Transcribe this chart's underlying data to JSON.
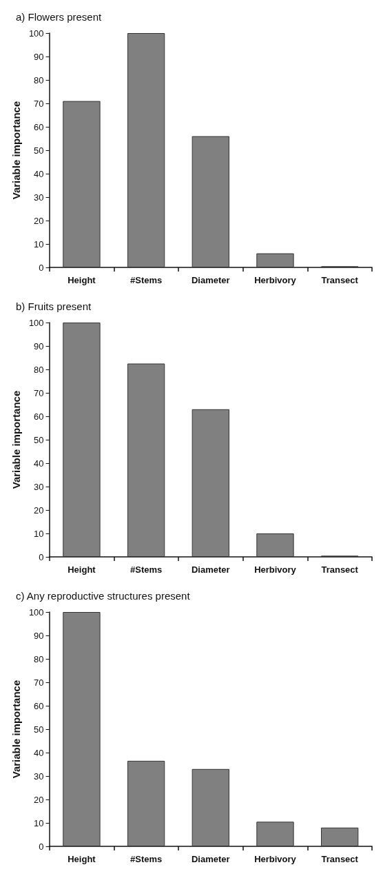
{
  "chart_data": [
    {
      "type": "bar",
      "title": "a) Flowers present",
      "ylabel": "Variable importance",
      "categories": [
        "Height",
        "#Stems",
        "Diameter",
        "Herbivory",
        "Transect"
      ],
      "values": [
        71,
        100,
        56,
        6,
        0.5
      ],
      "color": "#808080",
      "ylim": [
        0,
        100
      ],
      "yticks": [
        0,
        10,
        20,
        30,
        40,
        50,
        60,
        70,
        80,
        90,
        100
      ],
      "grid": false
    },
    {
      "type": "bar",
      "title": "b) Fruits present",
      "ylabel": "Variable importance",
      "categories": [
        "Height",
        "#Stems",
        "Diameter",
        "Herbivory",
        "Transect"
      ],
      "values": [
        100,
        82.5,
        63,
        10,
        0.5
      ],
      "color": "#808080",
      "ylim": [
        0,
        100
      ],
      "yticks": [
        0,
        10,
        20,
        30,
        40,
        50,
        60,
        70,
        80,
        90,
        100
      ],
      "grid": false
    },
    {
      "type": "bar",
      "title": "c) Any reproductive structures present",
      "ylabel": "Variable importance",
      "categories": [
        "Height",
        "#Stems",
        "Diameter",
        "Herbivory",
        "Transect"
      ],
      "values": [
        100,
        36.5,
        33,
        10.5,
        8
      ],
      "color": "#808080",
      "ylim": [
        0,
        100
      ],
      "yticks": [
        0,
        10,
        20,
        30,
        40,
        50,
        60,
        70,
        80,
        90,
        100
      ],
      "grid": false
    }
  ]
}
